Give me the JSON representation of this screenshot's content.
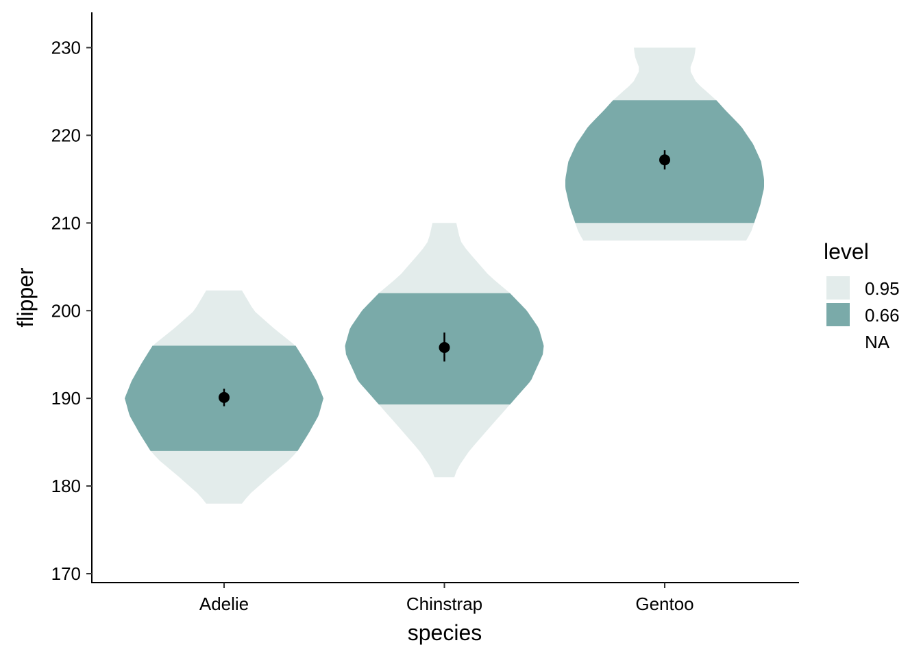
{
  "chart_data": {
    "type": "violin",
    "xlabel": "species",
    "ylabel": "flipper",
    "categories": [
      "Adelie",
      "Chinstrap",
      "Gentoo"
    ],
    "ylim": [
      169,
      234
    ],
    "yticks": [
      170,
      180,
      190,
      200,
      210,
      220,
      230
    ],
    "grid": false,
    "legend": {
      "title": "level",
      "position": "right",
      "entries": [
        {
          "label": "0.95",
          "color": "#e3eceb"
        },
        {
          "label": "0.66",
          "color": "#7aaaa9"
        },
        {
          "label": "NA",
          "color": null
        }
      ]
    },
    "series": [
      {
        "category": "Adelie",
        "interval_95": [
          178,
          202.3
        ],
        "interval_66": [
          184,
          196
        ],
        "mean": 190.1,
        "ci": [
          189.1,
          191.1
        ],
        "profile": [
          [
            178,
            0.18
          ],
          [
            179,
            0.25
          ],
          [
            181,
            0.45
          ],
          [
            183,
            0.66
          ],
          [
            184,
            0.74
          ],
          [
            186,
            0.85
          ],
          [
            188,
            0.95
          ],
          [
            190,
            1.0
          ],
          [
            192,
            0.93
          ],
          [
            194,
            0.83
          ],
          [
            196,
            0.72
          ],
          [
            198,
            0.5
          ],
          [
            200,
            0.3
          ],
          [
            202.3,
            0.18
          ]
        ]
      },
      {
        "category": "Chinstrap",
        "interval_95": [
          181,
          210
        ],
        "interval_66": [
          189.3,
          202
        ],
        "mean": 195.8,
        "ci": [
          194.2,
          197.5
        ],
        "profile": [
          [
            181,
            0.1
          ],
          [
            182,
            0.13
          ],
          [
            184,
            0.25
          ],
          [
            187,
            0.48
          ],
          [
            189.3,
            0.66
          ],
          [
            192,
            0.87
          ],
          [
            195,
            0.99
          ],
          [
            196,
            1.0
          ],
          [
            198,
            0.95
          ],
          [
            200,
            0.83
          ],
          [
            202,
            0.66
          ],
          [
            204,
            0.45
          ],
          [
            207,
            0.22
          ],
          [
            208,
            0.16
          ],
          [
            210,
            0.12
          ]
        ]
      },
      {
        "category": "Gentoo",
        "interval_95": [
          208,
          230
        ],
        "interval_66": [
          210,
          224
        ],
        "mean": 217.2,
        "ci": [
          216.1,
          218.3
        ],
        "profile": [
          [
            208,
            0.82
          ],
          [
            209,
            0.87
          ],
          [
            210,
            0.9
          ],
          [
            212,
            0.96
          ],
          [
            214,
            1.0
          ],
          [
            215,
            1.0
          ],
          [
            217,
            0.97
          ],
          [
            219,
            0.89
          ],
          [
            221,
            0.77
          ],
          [
            223,
            0.6
          ],
          [
            224,
            0.52
          ],
          [
            226,
            0.32
          ],
          [
            227.5,
            0.25
          ],
          [
            229,
            0.3
          ],
          [
            230,
            0.31
          ]
        ]
      }
    ]
  }
}
